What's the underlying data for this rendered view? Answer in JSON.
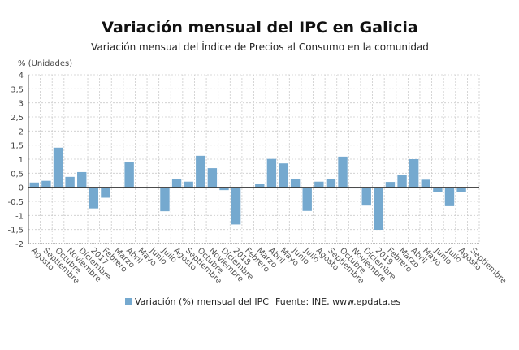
{
  "title": "Variación mensual del IPC en Galicia",
  "subtitle": "Variación mensual del Índice de Precios al Consumo en la comunidad",
  "source": "Fuente: INE, www.epdata.es",
  "chart_data": {
    "type": "bar",
    "ylabel": "% (Unidades)",
    "ylim": [
      -2,
      4
    ],
    "yticks": [
      4,
      3.5,
      3,
      2.5,
      2,
      1.5,
      1,
      0.5,
      0,
      -0.5,
      -1,
      -1.5,
      -2
    ],
    "ytick_labels": [
      "4",
      "3,5",
      "3",
      "2,5",
      "2",
      "1,5",
      "1",
      "0,5",
      "0",
      "-0,5",
      "-1",
      "-1,5",
      "-2"
    ],
    "grid": true,
    "legend_position": "bottom",
    "bar_color": "#75a9cf",
    "categories": [
      "Agosto",
      "Septiembre",
      "Octubre",
      "Noviembre",
      "Diciembre",
      "2017",
      "Febrero",
      "Marzo",
      "Abril",
      "Mayo",
      "Junio",
      "Julio",
      "Agosto",
      "Septiembre",
      "Octubre",
      "Noviembre",
      "Diciembre",
      "2018",
      "Febrero",
      "Marzo",
      "Abril",
      "Mayo",
      "Junio",
      "Julio",
      "Agosto",
      "Septiembre",
      "Octubre",
      "Noviembre",
      "Diciembre",
      "2019",
      "Febrero",
      "Marzo",
      "Abril",
      "Mayo",
      "Junio",
      "Julio",
      "Agosto",
      "Septiembre"
    ],
    "series": [
      {
        "name": "Variación (%) mensual del IPC",
        "values": [
          0.17,
          0.23,
          1.41,
          0.37,
          0.54,
          -0.75,
          -0.37,
          0,
          0.91,
          0,
          0,
          -0.85,
          0.28,
          0.2,
          1.12,
          0.68,
          -0.1,
          -1.32,
          0,
          0.12,
          1.01,
          0.85,
          0.29,
          -0.84,
          0.2,
          0.29,
          1.09,
          -0.04,
          -0.65,
          -1.51,
          0.19,
          0.45,
          1.0,
          0.27,
          -0.18,
          -0.67,
          -0.17,
          -0.03
        ]
      }
    ]
  }
}
